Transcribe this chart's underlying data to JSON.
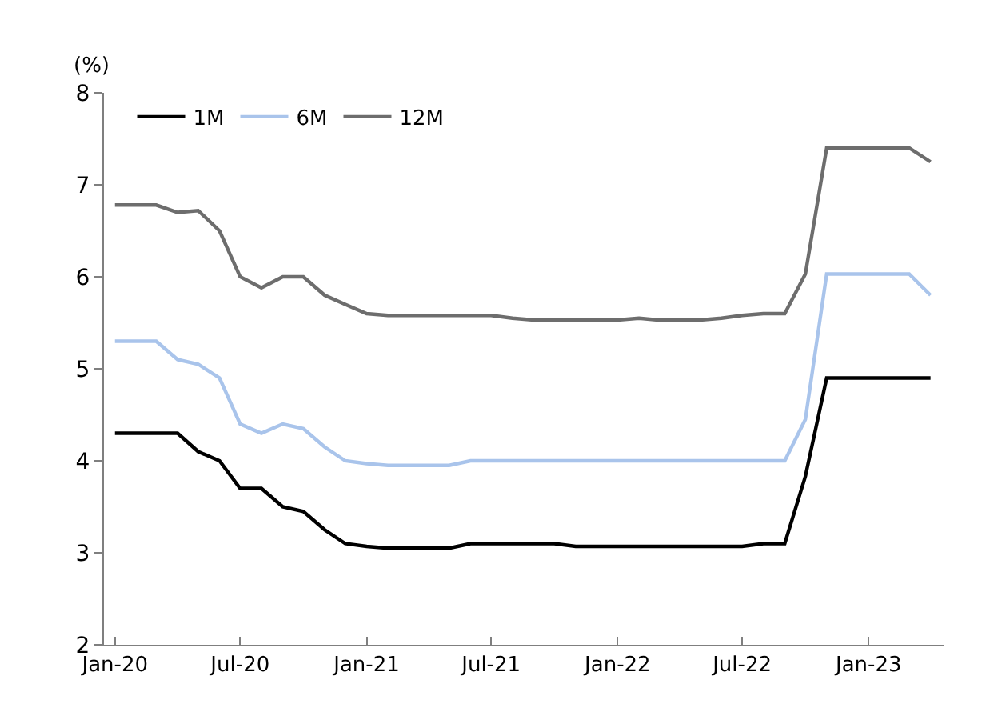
{
  "chart_data": {
    "type": "line",
    "ylabel": "(%)",
    "x": [
      "2020-01",
      "2020-02",
      "2020-03",
      "2020-04",
      "2020-05",
      "2020-06",
      "2020-07",
      "2020-08",
      "2020-09",
      "2020-10",
      "2020-11",
      "2020-12",
      "2021-01",
      "2021-02",
      "2021-03",
      "2021-04",
      "2021-05",
      "2021-06",
      "2021-07",
      "2021-08",
      "2021-09",
      "2021-10",
      "2021-11",
      "2021-12",
      "2022-01",
      "2022-02",
      "2022-03",
      "2022-04",
      "2022-05",
      "2022-06",
      "2022-07",
      "2022-08",
      "2022-09",
      "2022-10",
      "2022-11",
      "2022-12",
      "2023-01",
      "2023-02",
      "2023-03",
      "2023-04"
    ],
    "series": [
      {
        "name": "1M",
        "color": "#000000",
        "values": [
          4.3,
          4.3,
          4.3,
          4.3,
          4.1,
          4.0,
          3.7,
          3.7,
          3.5,
          3.45,
          3.25,
          3.1,
          3.07,
          3.05,
          3.05,
          3.05,
          3.05,
          3.1,
          3.1,
          3.1,
          3.1,
          3.1,
          3.07,
          3.07,
          3.07,
          3.07,
          3.07,
          3.07,
          3.07,
          3.07,
          3.07,
          3.1,
          3.1,
          3.83,
          4.9,
          4.9,
          4.9,
          4.9,
          4.9,
          4.9
        ]
      },
      {
        "name": "6M",
        "color": "#a9c4eb",
        "values": [
          5.3,
          5.3,
          5.3,
          5.1,
          5.05,
          4.9,
          4.4,
          4.3,
          4.4,
          4.35,
          4.15,
          4.0,
          3.97,
          3.95,
          3.95,
          3.95,
          3.95,
          4.0,
          4.0,
          4.0,
          4.0,
          4.0,
          4.0,
          4.0,
          4.0,
          4.0,
          4.0,
          4.0,
          4.0,
          4.0,
          4.0,
          4.0,
          4.0,
          4.45,
          6.03,
          6.03,
          6.03,
          6.03,
          6.03,
          5.8
        ]
      },
      {
        "name": "12M",
        "color": "#6d6d6d",
        "values": [
          6.78,
          6.78,
          6.78,
          6.7,
          6.72,
          6.5,
          6.0,
          5.88,
          6.0,
          6.0,
          5.8,
          5.7,
          5.6,
          5.58,
          5.58,
          5.58,
          5.58,
          5.58,
          5.58,
          5.55,
          5.53,
          5.53,
          5.53,
          5.53,
          5.53,
          5.55,
          5.53,
          5.53,
          5.53,
          5.55,
          5.58,
          5.6,
          5.6,
          6.03,
          7.4,
          7.4,
          7.4,
          7.4,
          7.4,
          7.25
        ]
      }
    ],
    "xlim": [
      "2019-12-16",
      "2023-04-20"
    ],
    "xticks": [
      {
        "value": "2020-01",
        "label": "Jan-20"
      },
      {
        "value": "2020-07",
        "label": "Jul-20"
      },
      {
        "value": "2021-01",
        "label": "Jan-21"
      },
      {
        "value": "2021-07",
        "label": "Jul-21"
      },
      {
        "value": "2022-01",
        "label": "Jan-22"
      },
      {
        "value": "2022-07",
        "label": "Jul-22"
      },
      {
        "value": "2023-01",
        "label": "Jan-23"
      }
    ],
    "ylim": [
      2,
      8
    ],
    "yticks": [
      2,
      3,
      4,
      5,
      6,
      7,
      8
    ],
    "grid": false,
    "legend": "top left",
    "marker": "none",
    "line_style": "solid"
  }
}
